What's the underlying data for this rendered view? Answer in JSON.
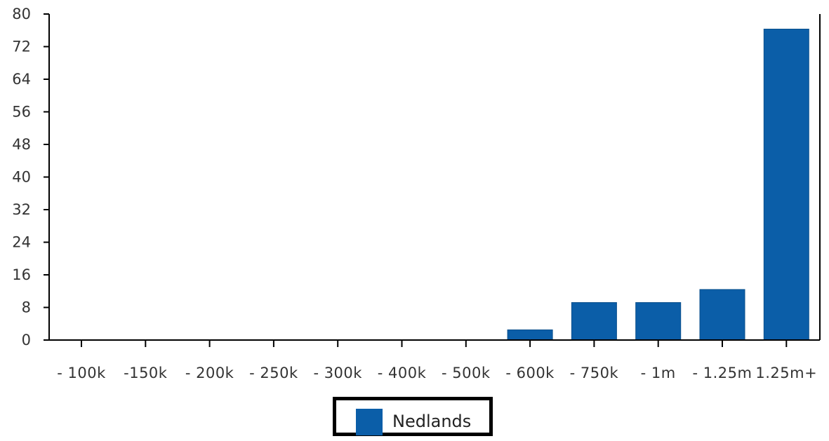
{
  "chart_data": {
    "type": "bar",
    "categories": [
      "- 100k",
      "-150k",
      "- 200k",
      "- 250k",
      "- 300k",
      "- 400k",
      "- 500k",
      "- 600k",
      "- 750k",
      "- 1m",
      "- 1.25m",
      "1.25m+"
    ],
    "series": [
      {
        "name": "Nedlands",
        "values": [
          0,
          0,
          0,
          0,
          0,
          0,
          0,
          2.5,
          9.2,
          9.2,
          12.4,
          76.3
        ]
      }
    ],
    "ylim": [
      0,
      80
    ],
    "yticks": [
      0,
      8,
      16,
      24,
      32,
      40,
      48,
      56,
      64,
      72,
      80
    ],
    "legend_placement": "bottom",
    "grid": false,
    "colors": {
      "bar": "#0b5ea8",
      "axis": "#000000"
    }
  },
  "legend": {
    "label": "Nedlands"
  }
}
